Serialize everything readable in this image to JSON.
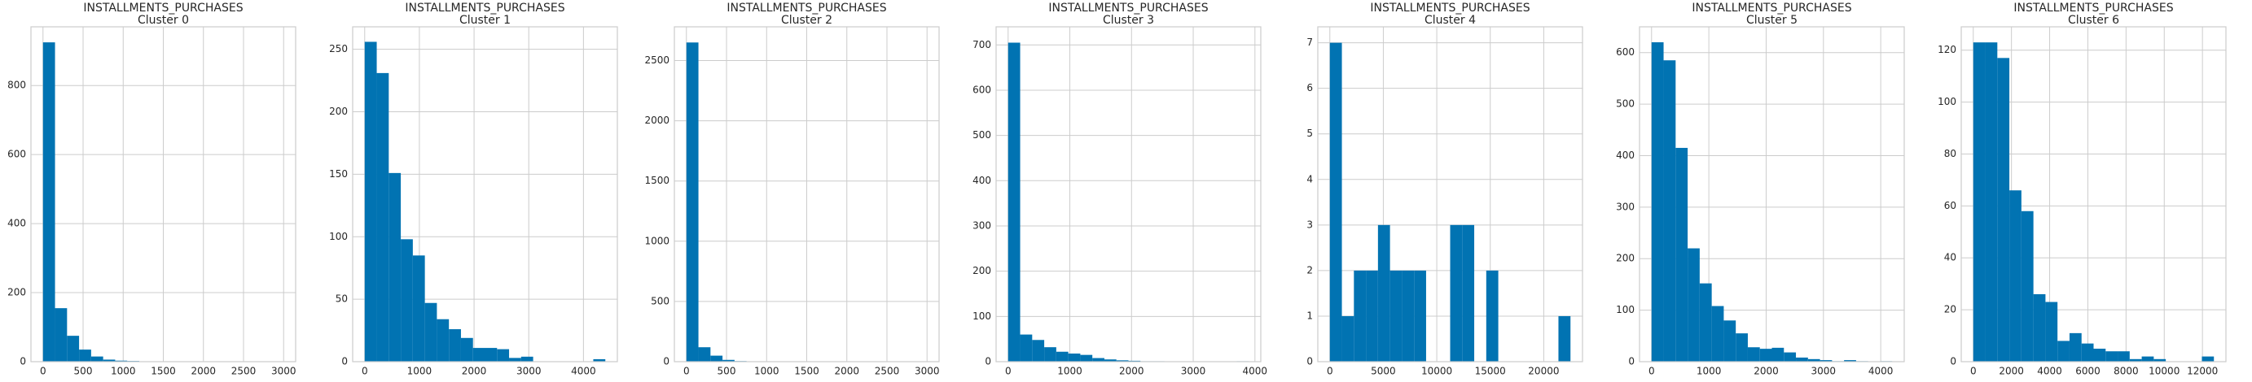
{
  "chart_data": [
    {
      "type": "histogram",
      "title": "INSTALLMENTS_PURCHASES",
      "subtitle": "Cluster 0",
      "color": "#0173b2",
      "grid": true,
      "bins": [
        0,
        150,
        300,
        450,
        600,
        750,
        900,
        1050,
        1200,
        1350,
        1500,
        1650,
        1800,
        1950,
        2100,
        2250,
        2400,
        2550,
        2700,
        2850,
        3000
      ],
      "counts": [
        925,
        155,
        75,
        35,
        15,
        6,
        3,
        2,
        1,
        1,
        0,
        0,
        0,
        0,
        0,
        0,
        0,
        0,
        0,
        1
      ],
      "xlim": [
        -150,
        3150
      ],
      "xticks": [
        0,
        500,
        1000,
        1500,
        2000,
        2500,
        3000
      ],
      "ylim": [
        0,
        970
      ],
      "yticks": [
        0,
        200,
        400,
        600,
        800
      ]
    },
    {
      "type": "histogram",
      "title": "INSTALLMENTS_PURCHASES",
      "subtitle": "Cluster 1",
      "color": "#0173b2",
      "grid": true,
      "bins": [
        0,
        220,
        440,
        660,
        880,
        1100,
        1320,
        1540,
        1760,
        1980,
        2200,
        2420,
        2640,
        2860,
        3080,
        3300,
        3520,
        3740,
        3960,
        4180,
        4400
      ],
      "counts": [
        256,
        231,
        151,
        98,
        85,
        47,
        34,
        26,
        19,
        11,
        11,
        10,
        3,
        4,
        0,
        0,
        0,
        0,
        0,
        2
      ],
      "xlim": [
        -220,
        4620
      ],
      "xticks": [
        0,
        1000,
        2000,
        3000,
        4000
      ],
      "ylim": [
        0,
        268
      ],
      "yticks": [
        0,
        50,
        100,
        150,
        200,
        250
      ]
    },
    {
      "type": "histogram",
      "title": "INSTALLMENTS_PURCHASES",
      "subtitle": "Cluster 2",
      "color": "#0173b2",
      "grid": true,
      "bins": [
        0,
        150,
        300,
        450,
        600,
        750,
        900,
        1050,
        1200,
        1350,
        1500,
        1650,
        1800,
        1950,
        2100,
        2250,
        2400,
        2550,
        2700,
        2850,
        3000
      ],
      "counts": [
        2650,
        120,
        50,
        15,
        5,
        3,
        2,
        1,
        1,
        0,
        0,
        0,
        0,
        0,
        0,
        0,
        0,
        0,
        0,
        1
      ],
      "xlim": [
        -150,
        3150
      ],
      "xticks": [
        0,
        500,
        1000,
        1500,
        2000,
        2500,
        3000
      ],
      "ylim": [
        0,
        2780
      ],
      "yticks": [
        0,
        500,
        1000,
        1500,
        2000,
        2500
      ]
    },
    {
      "type": "histogram",
      "title": "INSTALLMENTS_PURCHASES",
      "subtitle": "Cluster 3",
      "color": "#0173b2",
      "grid": true,
      "bins": [
        0,
        195,
        390,
        585,
        780,
        975,
        1170,
        1365,
        1560,
        1755,
        1950,
        2145,
        2340,
        2535,
        2730,
        2925,
        3120,
        3315,
        3510,
        3705,
        3900
      ],
      "counts": [
        705,
        60,
        48,
        32,
        22,
        18,
        15,
        8,
        5,
        3,
        2,
        1,
        1,
        0,
        0,
        0,
        0,
        0,
        0,
        1
      ],
      "xlim": [
        -195,
        4095
      ],
      "xticks": [
        0,
        1000,
        2000,
        3000,
        4000
      ],
      "ylim": [
        0,
        740
      ],
      "yticks": [
        0,
        100,
        200,
        300,
        400,
        500,
        600,
        700
      ]
    },
    {
      "type": "histogram",
      "title": "INSTALLMENTS_PURCHASES",
      "subtitle": "Cluster 4",
      "color": "#0173b2",
      "grid": true,
      "bins": [
        0,
        1125,
        2250,
        3375,
        4500,
        5625,
        6750,
        7875,
        9000,
        10125,
        11250,
        12375,
        13500,
        14625,
        15750,
        16875,
        18000,
        19125,
        20250,
        21375,
        22500
      ],
      "counts": [
        7,
        1,
        2,
        2,
        3,
        2,
        2,
        2,
        0,
        0,
        3,
        3,
        0,
        2,
        0,
        0,
        0,
        0,
        0,
        1
      ],
      "xlim": [
        -1125,
        23625
      ],
      "xticks": [
        0,
        5000,
        10000,
        15000,
        20000
      ],
      "ylim": [
        0,
        7.35
      ],
      "yticks": [
        0,
        1,
        2,
        3,
        4,
        5,
        6,
        7
      ]
    },
    {
      "type": "histogram",
      "title": "INSTALLMENTS_PURCHASES",
      "subtitle": "Cluster 5",
      "color": "#0173b2",
      "grid": true,
      "bins": [
        0,
        210,
        420,
        630,
        840,
        1050,
        1260,
        1470,
        1680,
        1890,
        2100,
        2310,
        2520,
        2730,
        2940,
        3150,
        3360,
        3570,
        3780,
        3990,
        4200
      ],
      "counts": [
        620,
        585,
        415,
        220,
        152,
        108,
        80,
        55,
        28,
        25,
        27,
        18,
        8,
        5,
        3,
        1,
        3,
        1,
        0,
        1
      ],
      "xlim": [
        -210,
        4410
      ],
      "xticks": [
        0,
        1000,
        2000,
        3000,
        4000
      ],
      "ylim": [
        0,
        650
      ],
      "yticks": [
        0,
        100,
        200,
        300,
        400,
        500,
        600
      ]
    },
    {
      "type": "histogram",
      "title": "INSTALLMENTS_PURCHASES",
      "subtitle": "Cluster 6",
      "color": "#0173b2",
      "grid": true,
      "bins": [
        0,
        630,
        1260,
        1890,
        2520,
        3150,
        3780,
        4410,
        5040,
        5670,
        6300,
        6930,
        7560,
        8190,
        8820,
        9450,
        10080,
        10710,
        11340,
        11970,
        12600
      ],
      "counts": [
        123,
        123,
        117,
        66,
        58,
        26,
        23,
        8,
        11,
        7,
        5,
        4,
        4,
        1,
        2,
        1,
        0,
        0,
        0,
        2
      ],
      "xlim": [
        -630,
        13230
      ],
      "xticks": [
        0,
        2000,
        4000,
        6000,
        8000,
        10000,
        12000
      ],
      "ylim": [
        0,
        129
      ],
      "yticks": [
        0,
        20,
        40,
        60,
        80,
        100,
        120
      ]
    }
  ]
}
